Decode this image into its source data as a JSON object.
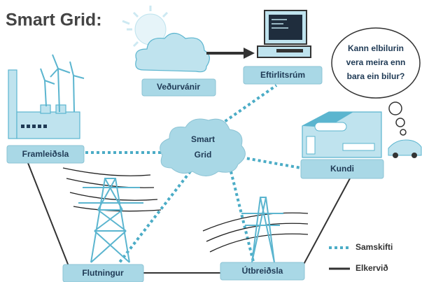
{
  "title": "Smart Grid:",
  "nodes": [
    {
      "label": "Veðurvánir"
    },
    {
      "label": "Eftirlitsrúm"
    },
    {
      "label": "Framleiðsla"
    },
    {
      "label": [
        "Smart",
        "Grid"
      ]
    },
    {
      "label": "Kundi"
    },
    {
      "label": "Flutningur"
    },
    {
      "label": "Útbreiðsla"
    }
  ],
  "thought": [
    "Kann elbilurin",
    "vera meira enn",
    "bara ein bilur?"
  ],
  "legend": [
    {
      "label": "Samskifti"
    },
    {
      "label": "Elkervið"
    }
  ]
}
